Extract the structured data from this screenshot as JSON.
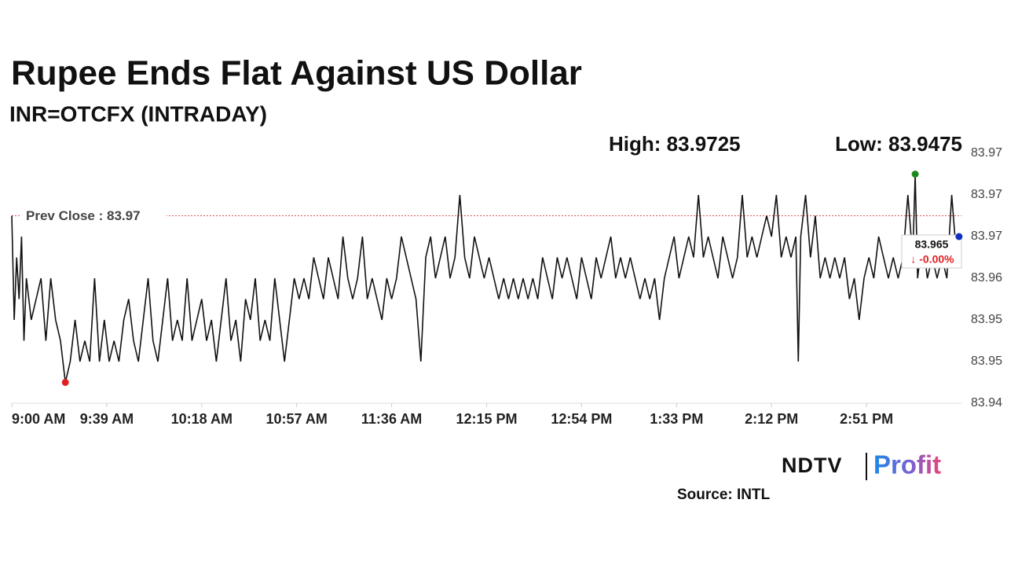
{
  "chart_data": {
    "type": "line",
    "title": "Rupee Ends Flat Against US Dollar",
    "subtitle": "INR=OTCFX (INTRADAY)",
    "high_label": "High: 83.9725",
    "low_label": "Low: 83.9475",
    "prev_close": {
      "value": 83.9675,
      "label": "Prev Close : 83.97"
    },
    "last_label": "83.965",
    "change_label": "↓ -0.00%",
    "color": "#111111",
    "xlim": [
      0,
      390
    ],
    "xticks": [
      {
        "value": 0,
        "label": "9:00 AM"
      },
      {
        "value": 39,
        "label": "9:39 AM"
      },
      {
        "value": 78,
        "label": "10:18 AM"
      },
      {
        "value": 117,
        "label": "10:57 AM"
      },
      {
        "value": 156,
        "label": "11:36 AM"
      },
      {
        "value": 195,
        "label": "12:15 PM"
      },
      {
        "value": 234,
        "label": "12:54 PM"
      },
      {
        "value": 273,
        "label": "1:33 PM"
      },
      {
        "value": 312,
        "label": "2:12 PM"
      },
      {
        "value": 351,
        "label": "2:51 PM"
      }
    ],
    "ylim": [
      83.945,
      83.975
    ],
    "yticks": [
      {
        "value": 83.975,
        "label": "83.97"
      },
      {
        "value": 83.97,
        "label": "83.97"
      },
      {
        "value": 83.965,
        "label": "83.97"
      },
      {
        "value": 83.96,
        "label": "83.96"
      },
      {
        "value": 83.955,
        "label": "83.95"
      },
      {
        "value": 83.95,
        "label": "83.95"
      },
      {
        "value": 83.945,
        "label": "83.94"
      }
    ],
    "x": [
      0,
      1,
      2,
      3,
      4,
      5,
      6,
      8,
      10,
      12,
      14,
      16,
      18,
      20,
      22,
      24,
      26,
      28,
      30,
      32,
      34,
      36,
      38,
      40,
      42,
      44,
      46,
      48,
      50,
      52,
      54,
      56,
      58,
      60,
      62,
      64,
      66,
      68,
      70,
      72,
      74,
      76,
      78,
      80,
      82,
      84,
      86,
      88,
      90,
      92,
      94,
      96,
      98,
      100,
      102,
      104,
      106,
      108,
      110,
      112,
      114,
      116,
      118,
      120,
      122,
      124,
      126,
      128,
      130,
      132,
      134,
      136,
      138,
      140,
      142,
      144,
      146,
      148,
      150,
      152,
      154,
      156,
      158,
      160,
      162,
      164,
      166,
      168,
      170,
      172,
      174,
      176,
      178,
      180,
      182,
      184,
      186,
      188,
      190,
      192,
      194,
      196,
      198,
      200,
      202,
      204,
      206,
      208,
      210,
      212,
      214,
      216,
      218,
      220,
      222,
      224,
      226,
      228,
      230,
      232,
      234,
      236,
      238,
      240,
      242,
      244,
      246,
      248,
      250,
      252,
      254,
      256,
      258,
      260,
      262,
      264,
      266,
      268,
      270,
      272,
      274,
      276,
      278,
      280,
      282,
      284,
      286,
      288,
      290,
      292,
      294,
      296,
      298,
      300,
      302,
      304,
      306,
      308,
      310,
      312,
      314,
      316,
      318,
      320,
      322,
      323,
      324,
      326,
      328,
      330,
      332,
      334,
      336,
      338,
      340,
      342,
      344,
      346,
      348,
      350,
      352,
      354,
      356,
      358,
      360,
      362,
      364,
      366,
      368,
      370,
      371,
      372,
      374,
      376,
      378,
      380,
      382,
      384,
      386,
      388,
      389
    ],
    "values": [
      83.9675,
      83.955,
      83.9625,
      83.9575,
      83.965,
      83.9525,
      83.96,
      83.955,
      83.9575,
      83.96,
      83.9525,
      83.96,
      83.955,
      83.9525,
      83.9475,
      83.95,
      83.955,
      83.95,
      83.9525,
      83.95,
      83.96,
      83.95,
      83.955,
      83.95,
      83.9525,
      83.95,
      83.955,
      83.9575,
      83.9525,
      83.95,
      83.955,
      83.96,
      83.9525,
      83.95,
      83.955,
      83.96,
      83.9525,
      83.955,
      83.9525,
      83.96,
      83.9525,
      83.955,
      83.9575,
      83.9525,
      83.955,
      83.95,
      83.955,
      83.96,
      83.9525,
      83.955,
      83.95,
      83.9575,
      83.955,
      83.96,
      83.9525,
      83.955,
      83.9525,
      83.96,
      83.955,
      83.95,
      83.955,
      83.96,
      83.9575,
      83.96,
      83.9575,
      83.9625,
      83.96,
      83.9575,
      83.9625,
      83.96,
      83.9575,
      83.965,
      83.96,
      83.9575,
      83.96,
      83.965,
      83.9575,
      83.96,
      83.9575,
      83.955,
      83.96,
      83.9575,
      83.96,
      83.965,
      83.9625,
      83.96,
      83.9575,
      83.95,
      83.9625,
      83.965,
      83.96,
      83.9625,
      83.965,
      83.96,
      83.9625,
      83.97,
      83.9625,
      83.96,
      83.965,
      83.9625,
      83.96,
      83.9625,
      83.96,
      83.9575,
      83.96,
      83.9575,
      83.96,
      83.9575,
      83.96,
      83.9575,
      83.96,
      83.9575,
      83.9625,
      83.96,
      83.9575,
      83.9625,
      83.96,
      83.9625,
      83.96,
      83.9575,
      83.9625,
      83.96,
      83.9575,
      83.9625,
      83.96,
      83.9625,
      83.965,
      83.96,
      83.9625,
      83.96,
      83.9625,
      83.96,
      83.9575,
      83.96,
      83.9575,
      83.96,
      83.955,
      83.96,
      83.9625,
      83.965,
      83.96,
      83.9625,
      83.965,
      83.9625,
      83.97,
      83.9625,
      83.965,
      83.9625,
      83.96,
      83.965,
      83.9625,
      83.96,
      83.9625,
      83.97,
      83.9625,
      83.965,
      83.9625,
      83.965,
      83.9675,
      83.965,
      83.97,
      83.9625,
      83.965,
      83.9625,
      83.965,
      83.95,
      83.965,
      83.97,
      83.9625,
      83.9675,
      83.96,
      83.9625,
      83.96,
      83.9625,
      83.96,
      83.9625,
      83.9575,
      83.96,
      83.955,
      83.96,
      83.9625,
      83.96,
      83.965,
      83.9625,
      83.96,
      83.9625,
      83.96,
      83.9625,
      83.97,
      83.9625,
      83.9725,
      83.96,
      83.965,
      83.96,
      83.9625,
      83.96,
      83.9625,
      83.96,
      83.97,
      83.9625,
      83.965
    ]
  },
  "logo": [
    "NDTV",
    "Profit"
  ],
  "source": "Source: INTL"
}
